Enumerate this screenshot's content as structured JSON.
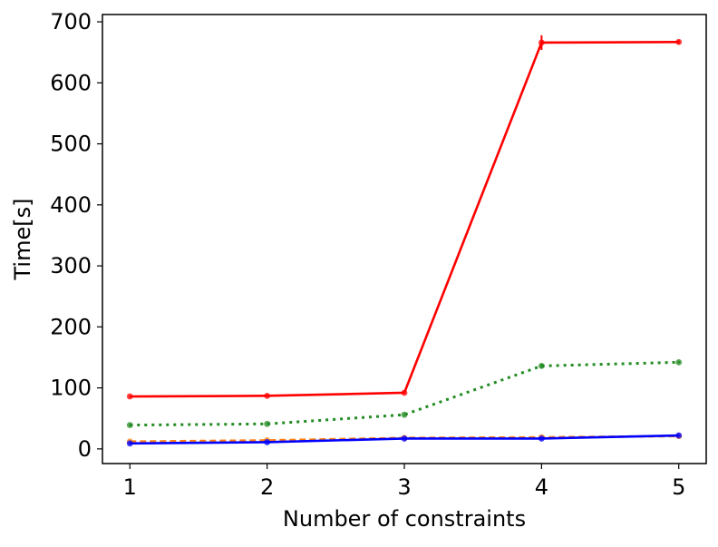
{
  "chart_data": {
    "type": "line",
    "title": "",
    "xlabel": "Number of constraints",
    "ylabel": "Time[s]",
    "x": [
      1,
      2,
      3,
      4,
      5
    ],
    "xticks": [
      1,
      2,
      3,
      4,
      5
    ],
    "yticks": [
      0,
      100,
      200,
      300,
      400,
      500,
      600,
      700
    ],
    "xlim": [
      0.8,
      5.2
    ],
    "ylim": [
      -24,
      712
    ],
    "grid": false,
    "legend": "none",
    "series": [
      {
        "color": "#ff0000",
        "linestyle": "solid",
        "values": [
          86,
          87,
          92,
          666,
          667
        ],
        "errors": [
          1,
          1,
          1,
          12,
          3
        ]
      },
      {
        "color": "#228b22",
        "linestyle": "dotted",
        "values": [
          39,
          41,
          56,
          136,
          142
        ],
        "errors": [
          1,
          1,
          1,
          3,
          2
        ]
      },
      {
        "color": "#ff7f0e",
        "linestyle": "dashed",
        "values": [
          12,
          14,
          18,
          19,
          21
        ],
        "errors": [
          1,
          1,
          1,
          1,
          1
        ]
      },
      {
        "color": "#0000ff",
        "linestyle": "solid",
        "values": [
          9,
          11,
          17,
          17,
          22
        ],
        "errors": [
          1,
          1,
          1,
          1,
          1
        ]
      }
    ]
  }
}
